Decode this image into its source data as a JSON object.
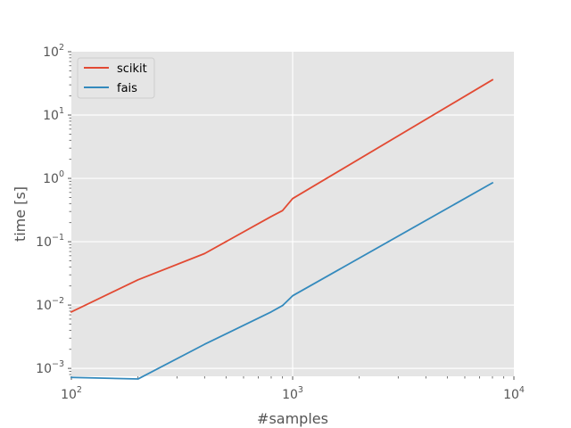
{
  "chart_data": {
    "type": "line",
    "title": "",
    "xlabel": "#samples",
    "ylabel": "time [s]",
    "xscale": "log",
    "yscale": "log",
    "xlim": [
      100,
      10000
    ],
    "ylim": [
      0.00075,
      100
    ],
    "grid": true,
    "background": "#e5e5e5",
    "grid_color": "#ffffff",
    "legend_position": "upper-left",
    "x_ticks": [
      {
        "base": "10",
        "exp": "2"
      },
      {
        "base": "10",
        "exp": "3"
      },
      {
        "base": "10",
        "exp": "4"
      }
    ],
    "y_ticks": [
      {
        "value": 0.001,
        "base": "10",
        "exp": "−3"
      },
      {
        "value": 0.01,
        "base": "10",
        "exp": "−2"
      },
      {
        "value": 0.1,
        "base": "10",
        "exp": "−1"
      },
      {
        "value": 1,
        "base": "10",
        "exp": "0"
      },
      {
        "value": 10,
        "base": "10",
        "exp": "1"
      },
      {
        "value": 100,
        "base": "10",
        "exp": "2"
      }
    ],
    "series": [
      {
        "name": "scikit",
        "color": "#e24a33",
        "x": [
          100,
          200,
          400,
          800,
          900,
          1000,
          8000
        ],
        "y": [
          0.0078,
          0.025,
          0.065,
          0.25,
          0.31,
          0.48,
          36
        ]
      },
      {
        "name": "fais",
        "color": "#348abd",
        "x": [
          100,
          200,
          400,
          800,
          900,
          1000,
          8000
        ],
        "y": [
          0.00072,
          0.00068,
          0.0024,
          0.0078,
          0.0098,
          0.014,
          0.85
        ]
      }
    ]
  }
}
